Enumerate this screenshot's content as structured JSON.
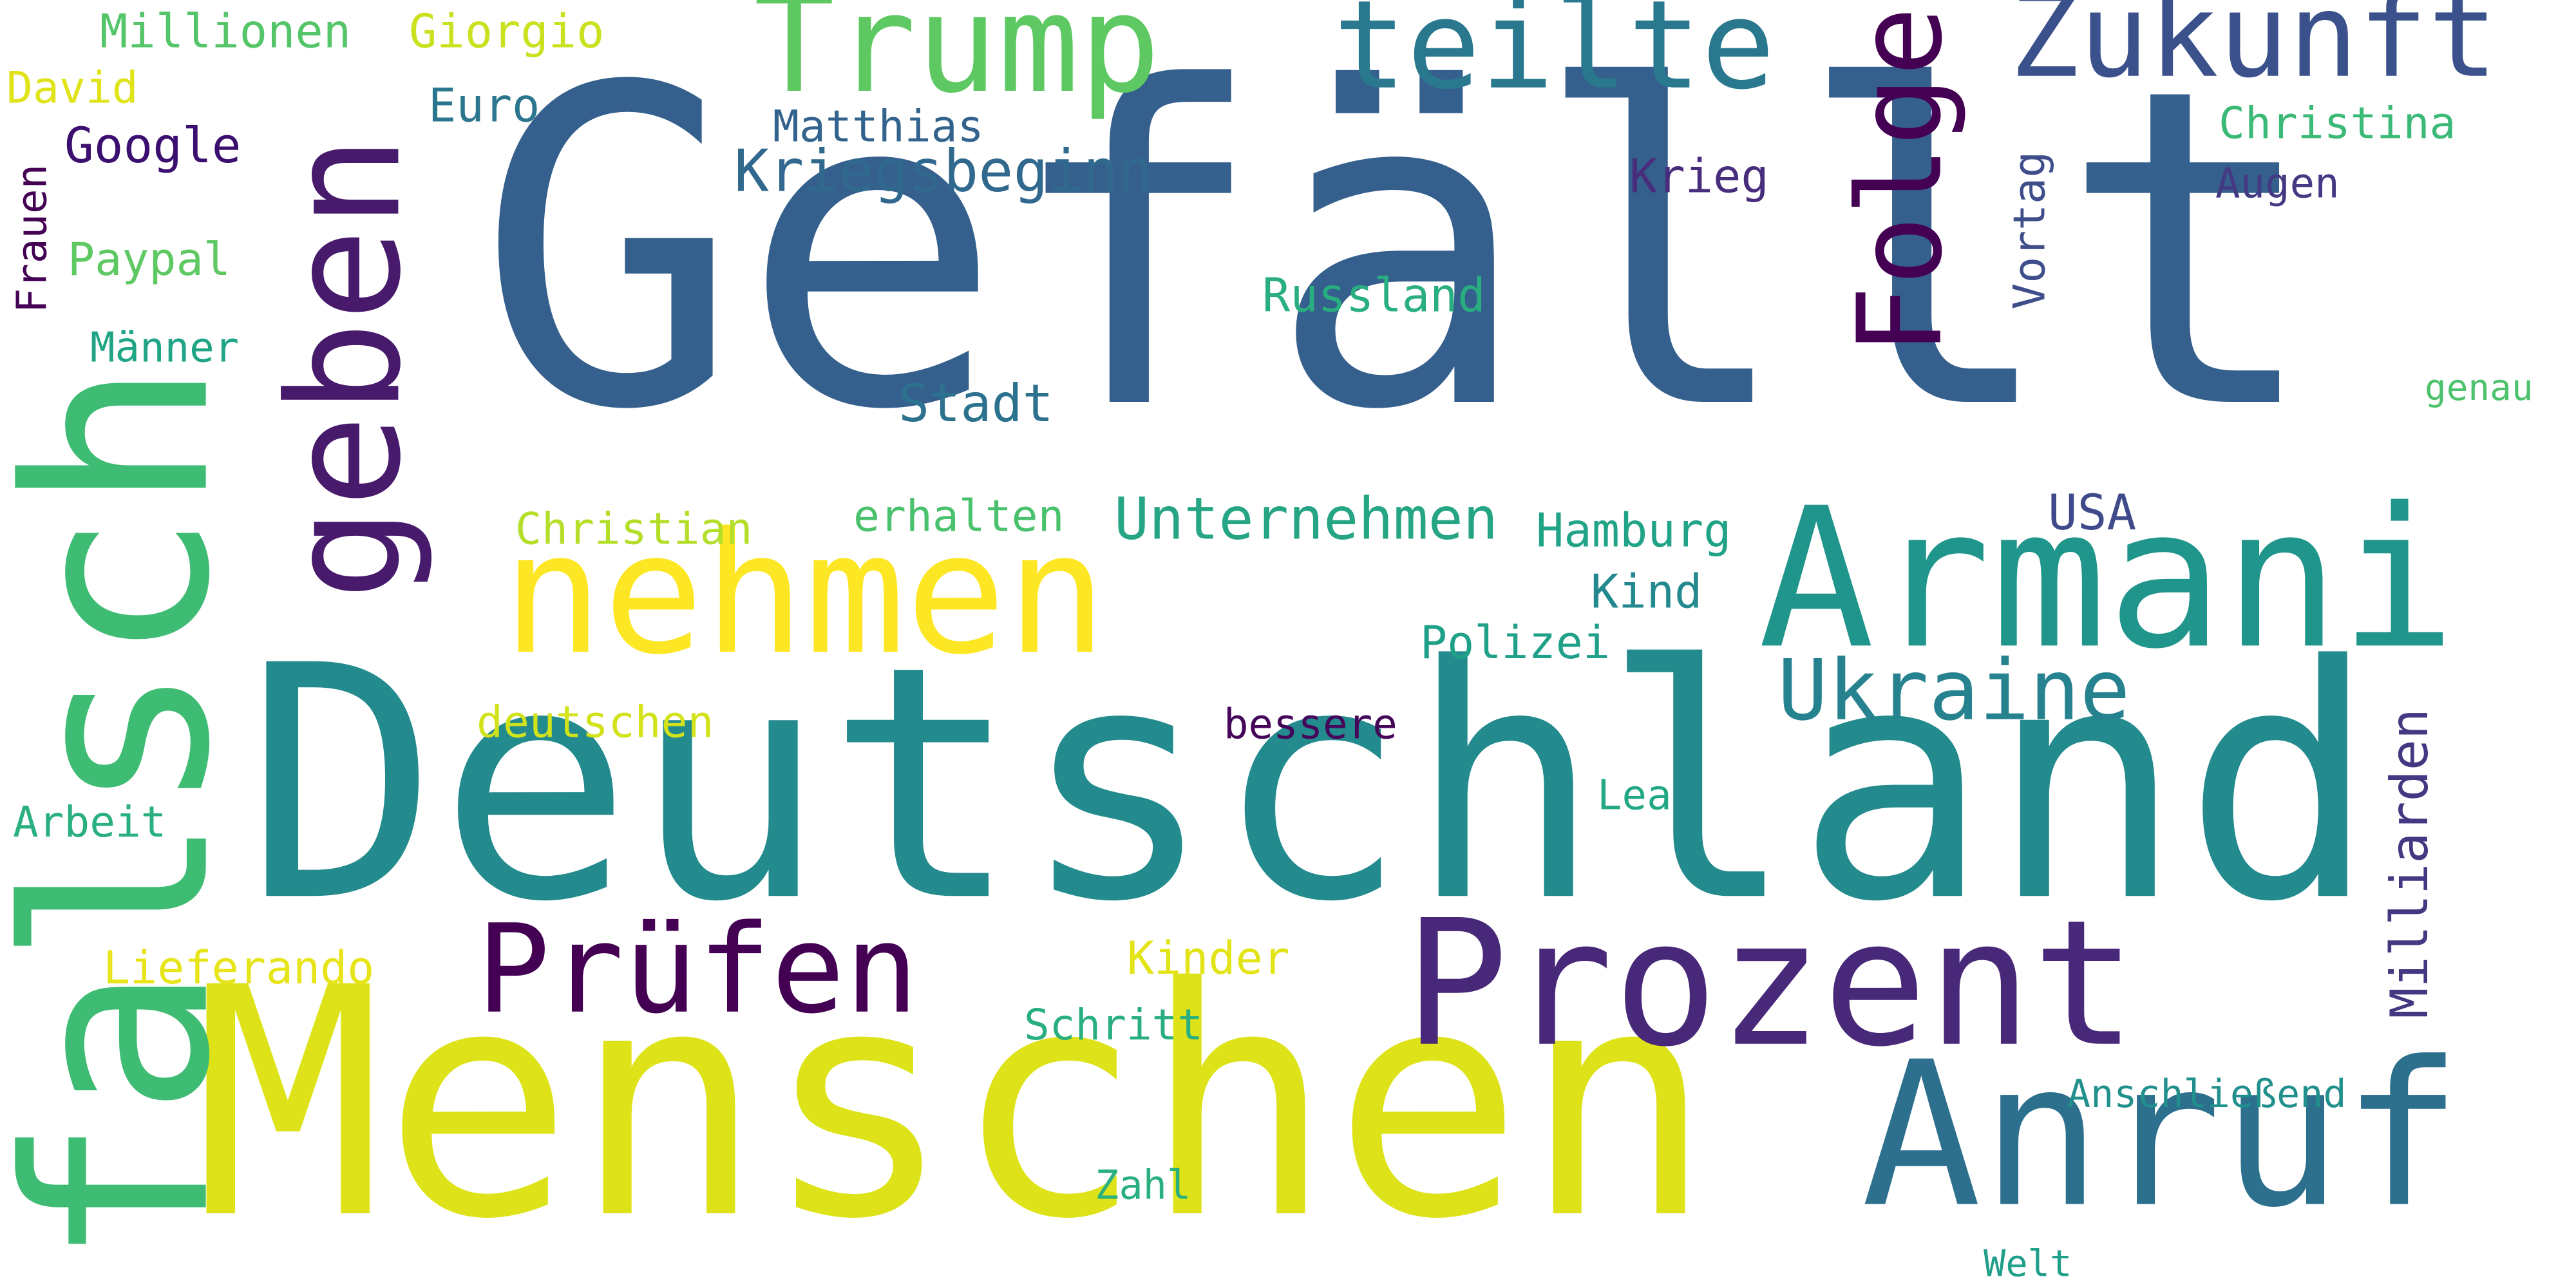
{
  "words": [
    {
      "text": "Gefällt",
      "color": "#35608d",
      "vertical": false
    },
    {
      "text": "Deutschland",
      "color": "#238a8d",
      "vertical": false
    },
    {
      "text": "Menschen",
      "color": "#dde318",
      "vertical": false
    },
    {
      "text": "falsch",
      "color": "#3fbc73",
      "vertical": true
    },
    {
      "text": "Armani",
      "color": "#1f958b",
      "vertical": false
    },
    {
      "text": "Anruf",
      "color": "#2d708e",
      "vertical": false
    },
    {
      "text": "nehmen",
      "color": "#fde725",
      "vertical": false
    },
    {
      "text": "geben",
      "color": "#481a6c",
      "vertical": true
    },
    {
      "text": "Prozent",
      "color": "#482878",
      "vertical": false
    },
    {
      "text": "Trump",
      "color": "#5ec962",
      "vertical": false
    },
    {
      "text": "teilte",
      "color": "#2a788e",
      "vertical": false
    },
    {
      "text": "Zukunft",
      "color": "#3b518b",
      "vertical": false
    },
    {
      "text": "Folge",
      "color": "#440154",
      "vertical": true
    },
    {
      "text": "Prüfen",
      "color": "#440154",
      "vertical": false
    },
    {
      "text": "Ukraine",
      "color": "#26828e",
      "vertical": false
    },
    {
      "text": "Kriegsbeginn",
      "color": "#31688e",
      "vertical": false
    },
    {
      "text": "Unternehmen",
      "color": "#25a584",
      "vertical": false
    },
    {
      "text": "Milliarden",
      "color": "#453781",
      "vertical": true
    },
    {
      "text": "Russland",
      "color": "#29af7f",
      "vertical": false
    },
    {
      "text": "Stadt",
      "color": "#2c728e",
      "vertical": false
    },
    {
      "text": "Hamburg",
      "color": "#20a386",
      "vertical": false
    },
    {
      "text": "Christian",
      "color": "#b5de2b",
      "vertical": false
    },
    {
      "text": "erhalten",
      "color": "#4ac16d",
      "vertical": false
    },
    {
      "text": "Kind",
      "color": "#23898e",
      "vertical": false
    },
    {
      "text": "Polizei",
      "color": "#1fa088",
      "vertical": false
    },
    {
      "text": "USA",
      "color": "#3e4a89",
      "vertical": false
    },
    {
      "text": "Matthias",
      "color": "#33638d",
      "vertical": false
    },
    {
      "text": "Krieg",
      "color": "#472d7b",
      "vertical": false
    },
    {
      "text": "Vortag",
      "color": "#3d4e8a",
      "vertical": true
    },
    {
      "text": "Christina",
      "color": "#3aba76",
      "vertical": false
    },
    {
      "text": "Augen",
      "color": "#443983",
      "vertical": false
    },
    {
      "text": "Millionen",
      "color": "#54c568",
      "vertical": false
    },
    {
      "text": "Giorgio",
      "color": "#cae11f",
      "vertical": false
    },
    {
      "text": "Euro",
      "color": "#2a768e",
      "vertical": false
    },
    {
      "text": "David",
      "color": "#dfe318",
      "vertical": false
    },
    {
      "text": "Google",
      "color": "#3b0f70",
      "vertical": false
    },
    {
      "text": "Frauen",
      "color": "#440154",
      "vertical": true
    },
    {
      "text": "Paypal",
      "color": "#5ec962",
      "vertical": false
    },
    {
      "text": "Männer",
      "color": "#20a486",
      "vertical": false
    },
    {
      "text": "genau",
      "color": "#4cc26c",
      "vertical": false
    },
    {
      "text": "deutschen",
      "color": "#d2e21b",
      "vertical": false
    },
    {
      "text": "bessere",
      "color": "#450559",
      "vertical": false
    },
    {
      "text": "Lea",
      "color": "#22a884",
      "vertical": false
    },
    {
      "text": "Arbeit",
      "color": "#2ab07f",
      "vertical": false
    },
    {
      "text": "Lieferando",
      "color": "#e7e419",
      "vertical": false
    },
    {
      "text": "Kinder",
      "color": "#e2e418",
      "vertical": false
    },
    {
      "text": "Schritt",
      "color": "#29af7f",
      "vertical": false
    },
    {
      "text": "Anschließend",
      "color": "#21908d",
      "vertical": false
    },
    {
      "text": "Zahl",
      "color": "#2ab07f",
      "vertical": false
    },
    {
      "text": "Welt",
      "color": "#1f9e89",
      "vertical": false
    }
  ]
}
